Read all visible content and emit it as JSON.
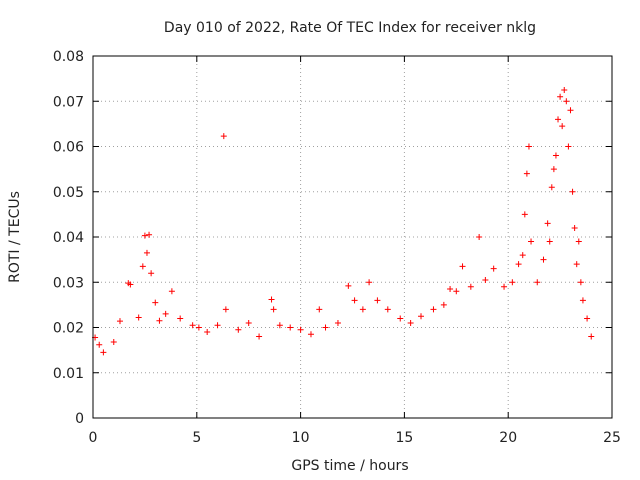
{
  "chart_data": {
    "type": "scatter",
    "title": "Day 010 of 2022, Rate Of TEC Index for receiver nklg",
    "xlabel": "GPS time / hours",
    "ylabel": "ROTI / TECUs",
    "xlim": [
      0,
      25
    ],
    "ylim": [
      0,
      0.08
    ],
    "x_ticks": [
      "0",
      "5",
      "10",
      "15",
      "20",
      "25"
    ],
    "y_ticks": [
      "0",
      "0.01",
      "0.02",
      "0.03",
      "0.04",
      "0.05",
      "0.06",
      "0.07",
      "0.08"
    ],
    "grid": true,
    "marker": "+",
    "series": [
      {
        "color": "#ff0000",
        "points": [
          [
            0.1,
            0.0178
          ],
          [
            0.3,
            0.0162
          ],
          [
            0.5,
            0.0145
          ],
          [
            1.0,
            0.0168
          ],
          [
            1.3,
            0.0214
          ],
          [
            1.7,
            0.0298
          ],
          [
            1.8,
            0.0295
          ],
          [
            2.2,
            0.0222
          ],
          [
            2.4,
            0.0335
          ],
          [
            2.5,
            0.0403
          ],
          [
            2.6,
            0.0365
          ],
          [
            2.7,
            0.0405
          ],
          [
            2.8,
            0.032
          ],
          [
            3.0,
            0.0255
          ],
          [
            3.2,
            0.0215
          ],
          [
            3.5,
            0.023
          ],
          [
            3.8,
            0.028
          ],
          [
            4.2,
            0.022
          ],
          [
            4.8,
            0.0205
          ],
          [
            5.1,
            0.02
          ],
          [
            5.5,
            0.019
          ],
          [
            6.0,
            0.0205
          ],
          [
            6.3,
            0.0623
          ],
          [
            6.4,
            0.024
          ],
          [
            7.0,
            0.0195
          ],
          [
            7.5,
            0.021
          ],
          [
            8.0,
            0.018
          ],
          [
            8.6,
            0.0262
          ],
          [
            8.7,
            0.024
          ],
          [
            9.0,
            0.0205
          ],
          [
            9.5,
            0.02
          ],
          [
            10.0,
            0.0195
          ],
          [
            10.5,
            0.0185
          ],
          [
            10.9,
            0.024
          ],
          [
            11.2,
            0.02
          ],
          [
            11.8,
            0.021
          ],
          [
            12.3,
            0.0292
          ],
          [
            12.6,
            0.026
          ],
          [
            13.0,
            0.024
          ],
          [
            13.3,
            0.03
          ],
          [
            13.7,
            0.026
          ],
          [
            14.2,
            0.024
          ],
          [
            14.8,
            0.022
          ],
          [
            15.3,
            0.021
          ],
          [
            15.8,
            0.0225
          ],
          [
            16.4,
            0.024
          ],
          [
            16.9,
            0.025
          ],
          [
            17.2,
            0.0285
          ],
          [
            17.5,
            0.028
          ],
          [
            17.8,
            0.0335
          ],
          [
            18.2,
            0.029
          ],
          [
            18.6,
            0.04
          ],
          [
            18.9,
            0.0305
          ],
          [
            19.3,
            0.033
          ],
          [
            19.8,
            0.029
          ],
          [
            20.2,
            0.03
          ],
          [
            20.5,
            0.034
          ],
          [
            20.7,
            0.036
          ],
          [
            20.8,
            0.045
          ],
          [
            20.9,
            0.054
          ],
          [
            21.0,
            0.06
          ],
          [
            21.1,
            0.039
          ],
          [
            21.4,
            0.03
          ],
          [
            21.7,
            0.035
          ],
          [
            21.9,
            0.043
          ],
          [
            22.0,
            0.039
          ],
          [
            22.1,
            0.051
          ],
          [
            22.2,
            0.055
          ],
          [
            22.3,
            0.058
          ],
          [
            22.4,
            0.066
          ],
          [
            22.5,
            0.071
          ],
          [
            22.6,
            0.0645
          ],
          [
            22.7,
            0.0725
          ],
          [
            22.8,
            0.07
          ],
          [
            22.9,
            0.06
          ],
          [
            23.0,
            0.068
          ],
          [
            23.1,
            0.05
          ],
          [
            23.2,
            0.042
          ],
          [
            23.3,
            0.034
          ],
          [
            23.4,
            0.039
          ],
          [
            23.5,
            0.03
          ],
          [
            23.6,
            0.026
          ],
          [
            23.8,
            0.022
          ],
          [
            24.0,
            0.018
          ]
        ]
      }
    ]
  }
}
